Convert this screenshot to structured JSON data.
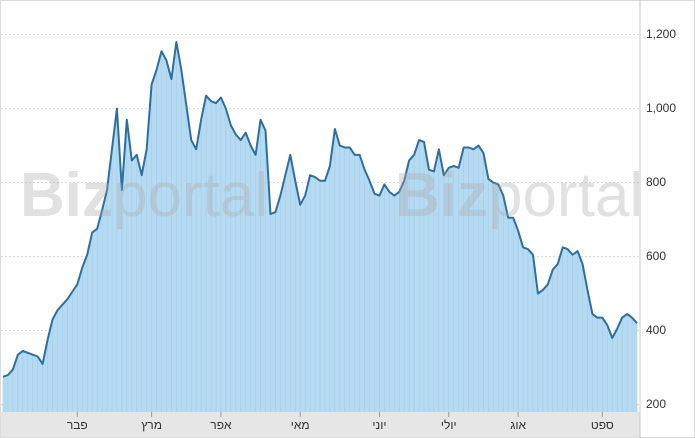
{
  "chart_data": {
    "type": "area",
    "watermark": [
      "Biz",
      "portal"
    ],
    "categories": [
      null,
      null,
      null,
      null,
      null,
      null,
      null,
      null,
      null,
      null,
      null,
      null,
      null,
      null,
      null,
      "פבר",
      null,
      null,
      null,
      null,
      null,
      null,
      null,
      null,
      null,
      null,
      null,
      null,
      null,
      null,
      "מרץ",
      null,
      null,
      null,
      null,
      null,
      null,
      null,
      null,
      null,
      null,
      null,
      null,
      null,
      "אפר",
      null,
      null,
      null,
      null,
      null,
      null,
      null,
      null,
      null,
      null,
      null,
      null,
      null,
      null,
      null,
      "מאי",
      null,
      null,
      null,
      null,
      null,
      null,
      null,
      null,
      null,
      null,
      null,
      null,
      null,
      null,
      null,
      "יוני",
      null,
      null,
      null,
      null,
      null,
      null,
      null,
      null,
      null,
      null,
      null,
      null,
      null,
      "יולי",
      null,
      null,
      null,
      null,
      null,
      null,
      null,
      null,
      null,
      null,
      null,
      null,
      null,
      "אוג",
      null,
      null,
      null,
      null,
      null,
      null,
      null,
      null,
      null,
      null,
      null,
      null,
      null,
      null,
      null,
      null,
      "ספט",
      null,
      null,
      null,
      null,
      null,
      null,
      null
    ],
    "values": [
      275,
      280,
      295,
      335,
      345,
      340,
      335,
      330,
      310,
      375,
      430,
      455,
      470,
      485,
      505,
      525,
      570,
      605,
      665,
      675,
      725,
      780,
      890,
      1000,
      780,
      970,
      860,
      875,
      820,
      890,
      1065,
      1105,
      1155,
      1130,
      1080,
      1180,
      1105,
      1010,
      915,
      890,
      970,
      1035,
      1020,
      1015,
      1030,
      1000,
      955,
      930,
      915,
      935,
      900,
      875,
      970,
      940,
      715,
      720,
      765,
      820,
      875,
      805,
      740,
      765,
      820,
      815,
      805,
      805,
      845,
      945,
      900,
      895,
      895,
      875,
      875,
      835,
      805,
      770,
      765,
      795,
      775,
      765,
      775,
      805,
      860,
      875,
      915,
      910,
      835,
      830,
      890,
      820,
      840,
      845,
      840,
      895,
      895,
      890,
      900,
      880,
      810,
      800,
      795,
      765,
      705,
      705,
      670,
      625,
      620,
      605,
      500,
      510,
      525,
      565,
      580,
      625,
      620,
      605,
      615,
      580,
      510,
      445,
      435,
      435,
      415,
      380,
      405,
      435,
      445,
      435,
      420
    ],
    "color": "#2f6f9f",
    "fill": "#b5daf1",
    "ylim": [
      180,
      1280
    ],
    "yticks": [
      200,
      400,
      600,
      800,
      {
        "value": 1000,
        "label": "1,000"
      },
      {
        "value": 1200,
        "label": "1,200"
      }
    ],
    "grid": true
  }
}
